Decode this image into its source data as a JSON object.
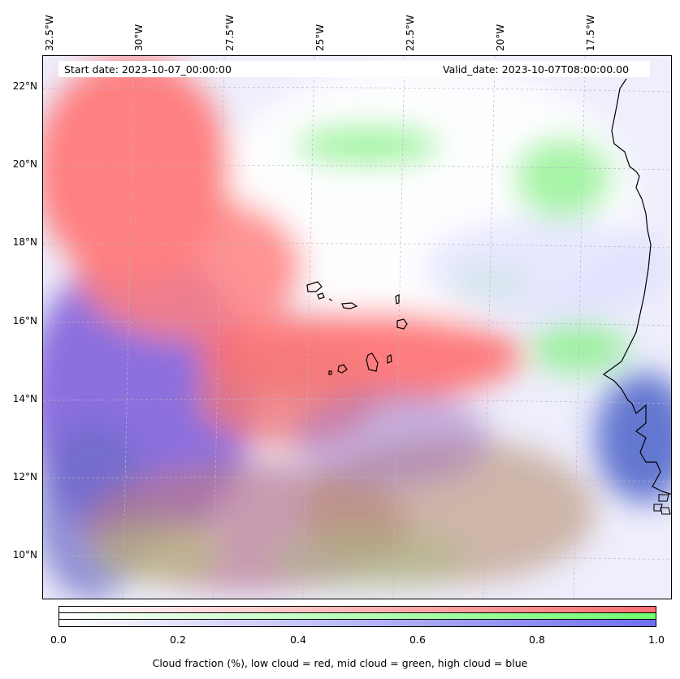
{
  "map": {
    "lon_labels": [
      "32.5°W",
      "30°W",
      "27.5°W",
      "25°W",
      "22.5°W",
      "20°W",
      "17.5°W"
    ],
    "lat_labels": [
      "22°N",
      "20°N",
      "18°N",
      "16°N",
      "14°N",
      "12°N",
      "10°N"
    ],
    "start_date": "Start date: 2023-10-07_00:00:00",
    "valid_date": "Valid_date: 2023-10-07T08:00:00.00",
    "colors": {
      "low_cloud": "#ff7070",
      "mid_cloud": "#70ff70",
      "high_cloud": "#6a5cf0",
      "coastline": "#000000"
    }
  },
  "colorbar": {
    "ticks": [
      "0.0",
      "0.2",
      "0.4",
      "0.6",
      "0.8",
      "1.0"
    ],
    "caption": "Cloud fraction (%), low cloud = red, mid cloud = green, high cloud = blue",
    "channels": [
      "red",
      "green",
      "blue"
    ]
  }
}
